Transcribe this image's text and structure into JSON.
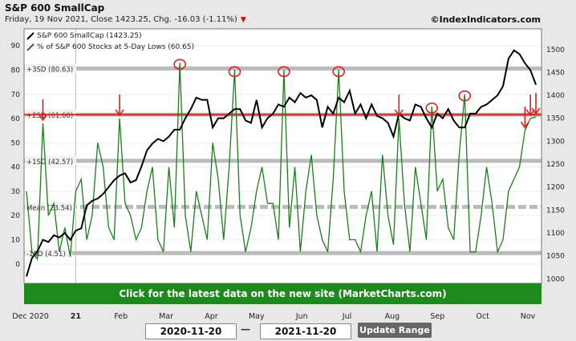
{
  "header": {
    "title": "S&P 600 SmallCap",
    "subtitle": "Friday, 19 Nov 2021, Close 1423.25, Chg. -16.03 (-1.11%)",
    "down_marker": "▼",
    "site": "©IndexIndicators.com"
  },
  "banner": {
    "text": "Click for the latest data on the new site (MarketCharts.com)"
  },
  "range": {
    "start": "2020-11-20",
    "dash": "—",
    "end": "2021-11-20",
    "update_label": "Update Range"
  },
  "colors": {
    "price": "#000000",
    "indicator": "#1a7f1a",
    "sd_band": "#bbbbbb",
    "highlight": "#e02020",
    "background": "#ffffff",
    "banner": "#1e8a1e"
  },
  "chart_data": {
    "type": "line",
    "legend_position": "top-left",
    "legend": [
      "S&P 600 SmallCap (1423.25)",
      "% of S&P 600 Stocks at 5-Day Lows (60.65)"
    ],
    "x_ticks": [
      "Dec 2020",
      "21",
      "Feb",
      "Mar",
      "Apr",
      "May",
      "Jun",
      "Jul",
      "Aug",
      "Sep",
      "Oct",
      "Nov"
    ],
    "left_axis": {
      "ylim": [
        -8,
        97
      ],
      "ticks": [
        0,
        10,
        20,
        30,
        40,
        50,
        60,
        70,
        80,
        90
      ]
    },
    "right_axis": {
      "ylim": [
        990,
        1545
      ],
      "ticks": [
        1000,
        1050,
        1100,
        1150,
        1200,
        1250,
        1300,
        1350,
        1400,
        1450,
        1500
      ]
    },
    "sd_lines": [
      {
        "label": "+3SD (80.63)",
        "value": 80.63
      },
      {
        "label": "+2SD (61.60)",
        "value": 61.6
      },
      {
        "label": "+1SD (42.57)",
        "value": 42.57
      },
      {
        "label": "Mean (23.54)",
        "value": 23.54
      },
      {
        "label": "-1SD (4.51)",
        "value": 4.51
      }
    ],
    "highlight_level": 61.6,
    "series": [
      {
        "name": "S&P 600 SmallCap (1423.25)",
        "axis": "right",
        "values": [
          1005,
          1045,
          1060,
          1085,
          1080,
          1095,
          1090,
          1100,
          1085,
          1105,
          1110,
          1160,
          1170,
          1175,
          1185,
          1200,
          1215,
          1225,
          1230,
          1210,
          1215,
          1245,
          1280,
          1295,
          1305,
          1300,
          1310,
          1325,
          1325,
          1350,
          1370,
          1395,
          1390,
          1390,
          1330,
          1350,
          1350,
          1360,
          1370,
          1370,
          1345,
          1340,
          1390,
          1330,
          1350,
          1360,
          1380,
          1375,
          1395,
          1385,
          1405,
          1395,
          1400,
          1390,
          1330,
          1375,
          1360,
          1395,
          1385,
          1410,
          1360,
          1380,
          1350,
          1380,
          1355,
          1350,
          1340,
          1310,
          1360,
          1350,
          1345,
          1380,
          1375,
          1350,
          1330,
          1360,
          1350,
          1370,
          1345,
          1330,
          1330,
          1360,
          1360,
          1375,
          1380,
          1390,
          1400,
          1420,
          1480,
          1498,
          1490,
          1470,
          1455,
          1423.25
        ]
      },
      {
        "name": "% of S&P 600 Stocks at 5-Day Lows (60.65)",
        "axis": "left",
        "values": [
          30,
          5,
          2,
          58,
          20,
          25,
          5,
          15,
          3,
          30,
          35,
          10,
          20,
          50,
          40,
          15,
          10,
          60,
          25,
          20,
          10,
          15,
          30,
          40,
          10,
          5,
          40,
          15,
          83,
          20,
          5,
          30,
          20,
          10,
          50,
          35,
          10,
          40,
          80,
          20,
          5,
          15,
          30,
          40,
          25,
          25,
          10,
          80,
          15,
          40,
          5,
          30,
          45,
          20,
          10,
          5,
          35,
          80,
          30,
          10,
          10,
          5,
          20,
          30,
          5,
          45,
          20,
          8,
          60,
          25,
          5,
          40,
          25,
          10,
          65,
          30,
          35,
          15,
          10,
          45,
          70,
          5,
          5,
          20,
          40,
          25,
          5,
          10,
          30,
          35,
          40,
          55,
          60,
          60.65
        ]
      }
    ]
  }
}
